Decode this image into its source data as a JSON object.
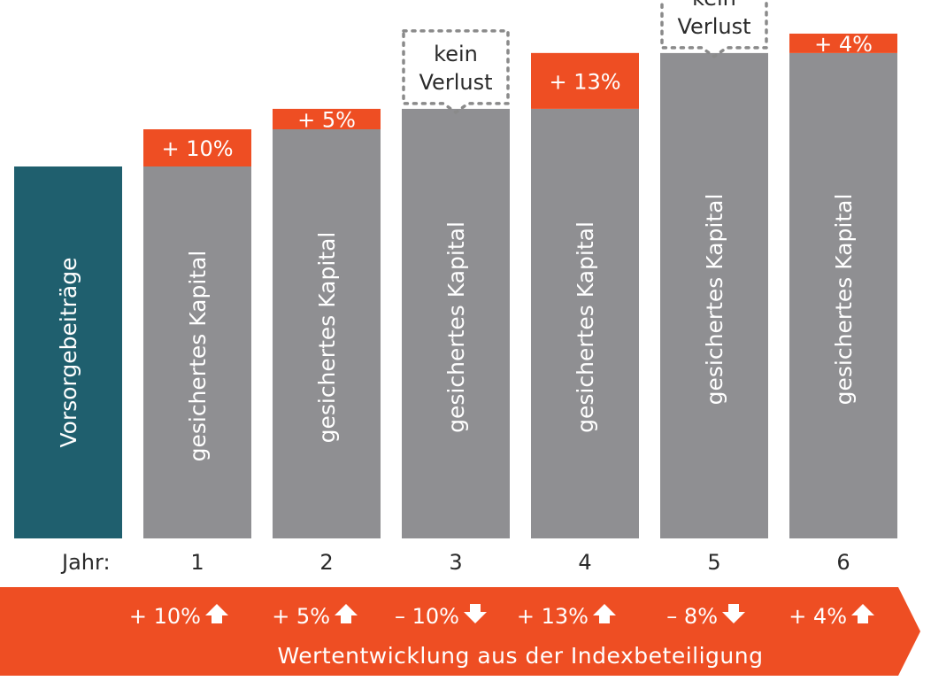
{
  "chart_data": {
    "type": "bar",
    "initial": {
      "label": "Vorsorgebeiträge",
      "value": 100
    },
    "categories": [
      "1",
      "2",
      "3",
      "4",
      "5",
      "6"
    ],
    "year_prefix": "Jahr:",
    "bar_label": "gesichertes Kapital",
    "secured_capital": [
      100,
      110,
      115.5,
      115.5,
      130.5,
      130.5
    ],
    "gains": [
      {
        "value": 10,
        "label": "+ 10%"
      },
      {
        "value": 5,
        "label": "+ 5%"
      },
      {
        "value": 0,
        "label": ""
      },
      {
        "value": 13,
        "label": "+ 13%"
      },
      {
        "value": 0,
        "label": ""
      },
      {
        "value": 4,
        "label": "+ 4%"
      }
    ],
    "no_loss": [
      {
        "show": false,
        "line1": "",
        "line2": ""
      },
      {
        "show": false,
        "line1": "",
        "line2": ""
      },
      {
        "show": true,
        "line1": "kein",
        "line2": "Verlust"
      },
      {
        "show": false,
        "line1": "",
        "line2": ""
      },
      {
        "show": true,
        "line1": "kein",
        "line2": "Verlust"
      },
      {
        "show": false,
        "line1": "",
        "line2": ""
      }
    ],
    "index_performance": [
      {
        "label": "+ 10%",
        "direction": "up"
      },
      {
        "label": "+ 5%",
        "direction": "up"
      },
      {
        "label": "– 10%",
        "direction": "down"
      },
      {
        "label": "+ 13%",
        "direction": "up"
      },
      {
        "label": "– 8%",
        "direction": "down"
      },
      {
        "label": "+ 4%",
        "direction": "up"
      }
    ],
    "banner_title": "Wertentwicklung aus der Indexbeteiligung",
    "ylim": [
      0,
      140
    ],
    "colors": {
      "initial": "#1f5f6e",
      "secured": "#8f8f92",
      "gain": "#ee4e23",
      "banner": "#ee4e23",
      "no_loss_border": "#8a8a8a",
      "text_dark": "#2a2a2a"
    }
  }
}
